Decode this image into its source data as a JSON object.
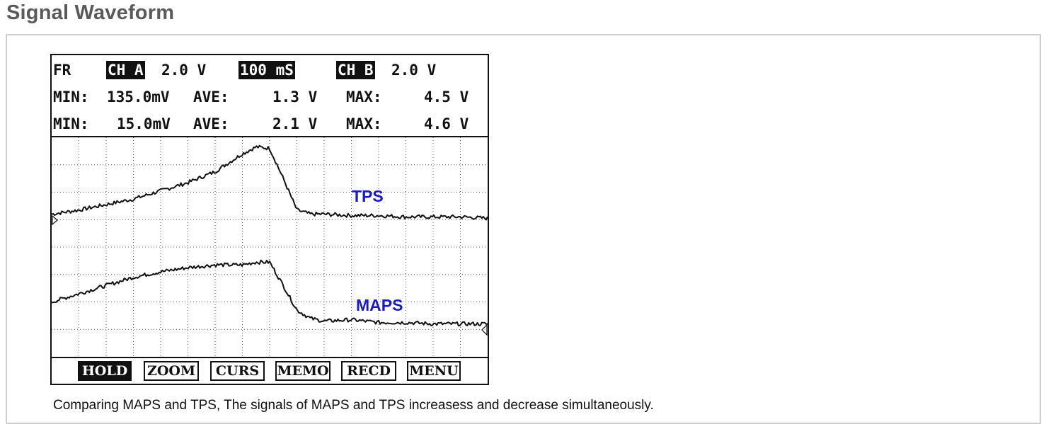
{
  "page": {
    "title": "Signal Waveform",
    "caption": "Comparing MAPS and TPS, The signals of MAPS and TPS increasess and decrease simultaneously."
  },
  "scope": {
    "header": {
      "mode": "FR",
      "ch_a_label": "CH A",
      "ch_a_scale": "2.0 V",
      "timebase": "100 mS",
      "ch_b_label": "CH B",
      "ch_b_scale": "2.0 V"
    },
    "stats": [
      {
        "min_label": "MIN:",
        "min": "135.0mV",
        "ave_label": "AVE:",
        "ave": "1.3 V",
        "max_label": "MAX:",
        "max": "4.5 V"
      },
      {
        "min_label": "MIN:",
        "min": "15.0mV",
        "ave_label": "AVE:",
        "ave": "2.1 V",
        "max_label": "MAX:",
        "max": "4.6 V"
      }
    ],
    "softkeys": [
      {
        "label": "HOLD",
        "active": true
      },
      {
        "label": "ZOOM",
        "active": false
      },
      {
        "label": "CURS",
        "active": false
      },
      {
        "label": "MEMO",
        "active": false
      },
      {
        "label": "RECD",
        "active": false
      },
      {
        "label": "MENU",
        "active": false
      }
    ],
    "trace_color": "#111111",
    "label_color": "#1a1acc"
  },
  "chart_data": {
    "type": "line",
    "grid": true,
    "x_divisions": 16,
    "y_divisions": 8,
    "x_unit": "mS",
    "x_per_div": 100,
    "xlim": [
      0,
      1600
    ],
    "ylim": [
      0,
      8
    ],
    "series": [
      {
        "name": "TPS",
        "x": [
          0,
          100,
          200,
          300,
          400,
          500,
          600,
          700,
          750,
          800,
          850,
          900,
          950,
          1000,
          1100,
          1200,
          1300,
          1400,
          1500,
          1600
        ],
        "y": [
          5.2,
          5.35,
          5.55,
          5.75,
          6.05,
          6.35,
          6.75,
          7.4,
          7.65,
          7.6,
          6.5,
          5.35,
          5.2,
          5.2,
          5.15,
          5.15,
          5.1,
          5.1,
          5.1,
          5.05
        ]
      },
      {
        "name": "MAPS",
        "x": [
          0,
          100,
          200,
          300,
          400,
          500,
          600,
          700,
          750,
          800,
          850,
          900,
          950,
          1000,
          1100,
          1200,
          1300,
          1400,
          1500,
          1600
        ],
        "y": [
          2.0,
          2.3,
          2.6,
          2.9,
          3.1,
          3.25,
          3.35,
          3.35,
          3.45,
          3.45,
          2.6,
          1.7,
          1.4,
          1.3,
          1.35,
          1.25,
          1.25,
          1.2,
          1.2,
          1.2
        ]
      }
    ]
  }
}
